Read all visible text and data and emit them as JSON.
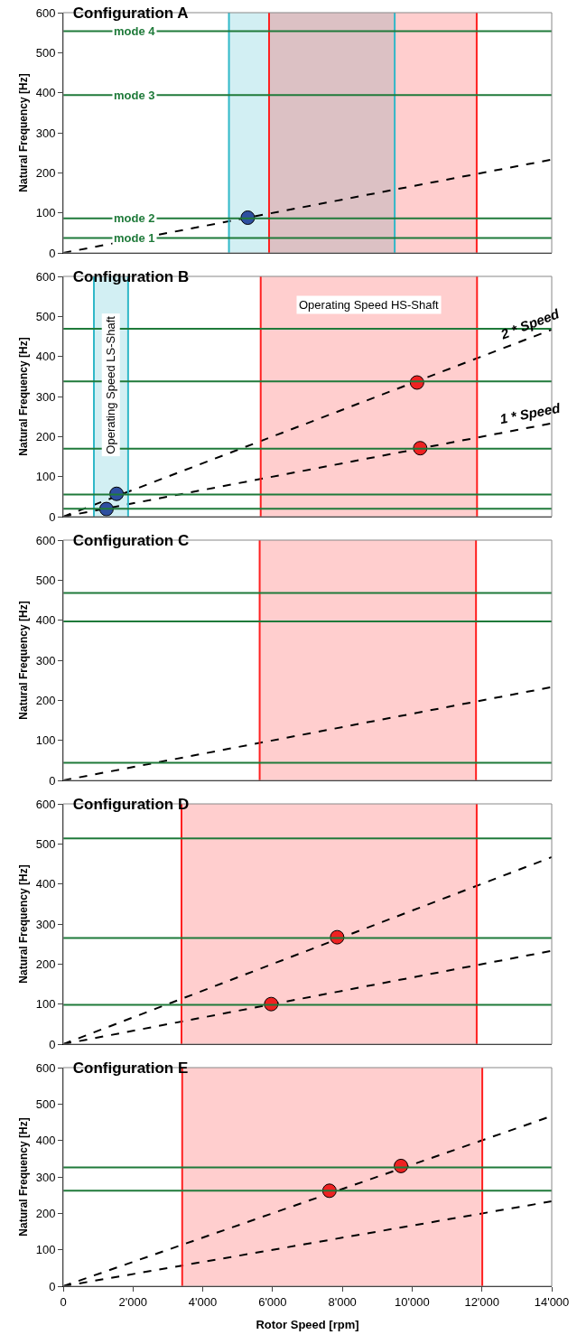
{
  "chart_data": [
    {
      "type": "line",
      "title": "Configuration A",
      "ylabel": "Natural Frequency [Hz]",
      "xlim": [
        0,
        14000
      ],
      "ylim": [
        0,
        600
      ],
      "yticks": [
        0,
        100,
        200,
        300,
        400,
        500,
        600
      ],
      "tick_labels": "y",
      "grid": false,
      "legend": false,
      "series": [
        {
          "color": "#000000",
          "line_style": "dashed",
          "x": [
            0,
            14000
          ],
          "values": [
            0,
            233
          ]
        },
        {
          "type": "scatter",
          "color": "#2e4fa0",
          "marker": "circle",
          "x": [
            5290
          ],
          "values": [
            88
          ]
        }
      ],
      "bands": [
        {
          "axis": "x",
          "from": 4750,
          "to": 9500,
          "color": "#30b8c8"
        },
        {
          "axis": "x",
          "from": 5900,
          "to": 11850,
          "color": "#ff2020"
        }
      ],
      "ref_lines": [
        {
          "axis": "x",
          "value": 4750,
          "color": "#30b8c8"
        },
        {
          "axis": "x",
          "value": 9500,
          "color": "#30b8c8"
        },
        {
          "axis": "x",
          "value": 5900,
          "color": "#ff2020"
        },
        {
          "axis": "x",
          "value": 11850,
          "color": "#ff2020"
        },
        {
          "axis": "y",
          "value": 37,
          "label": "mode 1",
          "color": "#1f7a3a"
        },
        {
          "axis": "y",
          "value": 86,
          "label": "mode 2",
          "color": "#1f7a3a"
        },
        {
          "axis": "y",
          "value": 394,
          "label": "mode 3",
          "color": "#1f7a3a"
        },
        {
          "axis": "y",
          "value": 554,
          "label": "mode 4",
          "color": "#1f7a3a"
        }
      ]
    },
    {
      "type": "line",
      "title": "Configuration B",
      "ylabel": "Natural Frequency [Hz]",
      "xlim": [
        0,
        14000
      ],
      "ylim": [
        0,
        600
      ],
      "yticks": [
        0,
        100,
        200,
        300,
        400,
        500,
        600
      ],
      "tick_labels": "y",
      "grid": false,
      "legend": false,
      "series": [
        {
          "name": "1 * Speed",
          "color": "#000000",
          "line_style": "dashed",
          "x": [
            0,
            14000
          ],
          "values": [
            0,
            233
          ]
        },
        {
          "name": "2 * Speed",
          "color": "#000000",
          "line_style": "dashed",
          "x": [
            0,
            14000
          ],
          "values": [
            0,
            467
          ]
        },
        {
          "type": "scatter",
          "color": "#2e4fa0",
          "marker": "circle",
          "x": [
            1240,
            1530
          ],
          "values": [
            19,
            57
          ]
        },
        {
          "type": "scatter",
          "color": "#ee2222",
          "marker": "circle",
          "x": [
            10140,
            10230
          ],
          "values": [
            335,
            171
          ]
        }
      ],
      "bands": [
        {
          "axis": "x",
          "from": 880,
          "to": 1860,
          "label": "Operating Speed LS-Shaft",
          "color": "#30b8c8"
        },
        {
          "axis": "x",
          "from": 5660,
          "to": 11860,
          "label": "Operating Speed HS-Shaft",
          "color": "#ff2020"
        }
      ],
      "ref_lines": [
        {
          "axis": "x",
          "value": 880,
          "color": "#30b8c8"
        },
        {
          "axis": "x",
          "value": 1860,
          "color": "#30b8c8"
        },
        {
          "axis": "x",
          "value": 5660,
          "color": "#ff2020"
        },
        {
          "axis": "x",
          "value": 11860,
          "color": "#ff2020"
        },
        {
          "axis": "y",
          "value": 20,
          "color": "#1f7a3a"
        },
        {
          "axis": "y",
          "value": 55,
          "color": "#1f7a3a"
        },
        {
          "axis": "y",
          "value": 170,
          "color": "#1f7a3a"
        },
        {
          "axis": "y",
          "value": 338,
          "color": "#1f7a3a"
        },
        {
          "axis": "y",
          "value": 469,
          "color": "#1f7a3a"
        }
      ]
    },
    {
      "type": "line",
      "title": "Configuration C",
      "ylabel": "Natural Frequency [Hz]",
      "xlim": [
        0,
        14000
      ],
      "ylim": [
        0,
        600
      ],
      "yticks": [
        0,
        100,
        200,
        300,
        400,
        500,
        600
      ],
      "tick_labels": "y",
      "grid": false,
      "legend": false,
      "series": [
        {
          "color": "#000000",
          "line_style": "dashed",
          "x": [
            0,
            14000
          ],
          "values": [
            0,
            233
          ]
        }
      ],
      "bands": [
        {
          "axis": "x",
          "from": 5630,
          "to": 11830,
          "color": "#ff2020"
        }
      ],
      "ref_lines": [
        {
          "axis": "x",
          "value": 5630,
          "color": "#ff2020"
        },
        {
          "axis": "x",
          "value": 11830,
          "color": "#ff2020"
        },
        {
          "axis": "y",
          "value": 44,
          "color": "#1f7a3a"
        },
        {
          "axis": "y",
          "value": 397,
          "color": "#1f7a3a"
        },
        {
          "axis": "y",
          "value": 468,
          "color": "#1f7a3a"
        }
      ]
    },
    {
      "type": "line",
      "title": "Configuration D",
      "ylabel": "Natural Frequency [Hz]",
      "xlim": [
        0,
        14000
      ],
      "ylim": [
        0,
        600
      ],
      "yticks": [
        0,
        100,
        200,
        300,
        400,
        500,
        600
      ],
      "tick_labels": "y",
      "grid": false,
      "legend": false,
      "series": [
        {
          "color": "#000000",
          "line_style": "dashed",
          "x": [
            0,
            14000
          ],
          "values": [
            0,
            233
          ]
        },
        {
          "color": "#000000",
          "line_style": "dashed",
          "x": [
            0,
            14000
          ],
          "values": [
            0,
            467
          ]
        },
        {
          "type": "scatter",
          "color": "#ee2222",
          "marker": "circle",
          "x": [
            5960,
            7850
          ],
          "values": [
            100,
            267
          ]
        }
      ],
      "bands": [
        {
          "axis": "x",
          "from": 3390,
          "to": 11850,
          "color": "#ff2020"
        }
      ],
      "ref_lines": [
        {
          "axis": "x",
          "value": 3390,
          "color": "#ff2020"
        },
        {
          "axis": "x",
          "value": 11850,
          "color": "#ff2020"
        },
        {
          "axis": "y",
          "value": 98,
          "color": "#1f7a3a"
        },
        {
          "axis": "y",
          "value": 265,
          "color": "#1f7a3a"
        },
        {
          "axis": "y",
          "value": 514,
          "color": "#1f7a3a"
        }
      ]
    },
    {
      "type": "line",
      "title": "Configuration E",
      "xlabel": "Rotor Speed [rpm]",
      "ylabel": "Natural Frequency [Hz]",
      "xlim": [
        0,
        14000
      ],
      "ylim": [
        0,
        600
      ],
      "yticks": [
        0,
        100,
        200,
        300,
        400,
        500,
        600
      ],
      "xticks": [
        0,
        {
          "value": 2000,
          "label": "2'000"
        },
        {
          "value": 4000,
          "label": "4'000"
        },
        {
          "value": 6000,
          "label": "6'000"
        },
        {
          "value": 8000,
          "label": "8'000"
        },
        {
          "value": 10000,
          "label": "10'000"
        },
        {
          "value": 12000,
          "label": "12'000"
        },
        {
          "value": 14000,
          "label": "14'000"
        }
      ],
      "grid": false,
      "legend": false,
      "series": [
        {
          "color": "#000000",
          "line_style": "dashed",
          "x": [
            0,
            14000
          ],
          "values": [
            0,
            233
          ]
        },
        {
          "color": "#000000",
          "line_style": "dashed",
          "x": [
            0,
            14000
          ],
          "values": [
            0,
            467
          ]
        },
        {
          "type": "scatter",
          "color": "#ee2222",
          "marker": "circle",
          "x": [
            7630,
            9680
          ],
          "values": [
            262,
            330
          ]
        }
      ],
      "bands": [
        {
          "axis": "x",
          "from": 3410,
          "to": 12010,
          "color": "#ff2020"
        }
      ],
      "ref_lines": [
        {
          "axis": "x",
          "value": 3410,
          "color": "#ff2020"
        },
        {
          "axis": "x",
          "value": 12010,
          "color": "#ff2020"
        },
        {
          "axis": "y",
          "value": 262,
          "color": "#1f7a3a"
        },
        {
          "axis": "y",
          "value": 326,
          "color": "#1f7a3a"
        }
      ]
    }
  ]
}
